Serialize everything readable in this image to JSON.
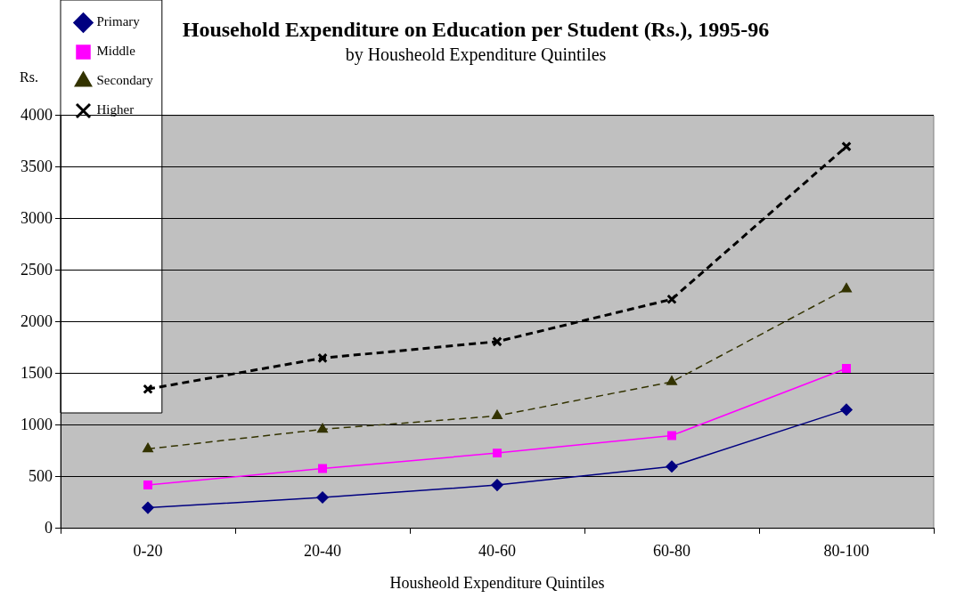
{
  "chart_data": {
    "type": "line",
    "title": "Household Expenditure on Education per Student (Rs.), 1995-96",
    "subtitle": "by Housheold Expenditure Quintiles",
    "xlabel": "Housheold Expenditure Quintiles",
    "ylabel": "Rs.",
    "categories": [
      "0-20",
      "20-40",
      "40-60",
      "60-80",
      "80-100"
    ],
    "series": [
      {
        "name": "Primary",
        "color": "#000080",
        "marker": "diamond",
        "line_style": "solid",
        "values": [
          200,
          300,
          420,
          600,
          1150
        ]
      },
      {
        "name": "Middle",
        "color": "#ff00ff",
        "marker": "square",
        "line_style": "solid",
        "values": [
          420,
          580,
          730,
          900,
          1550
        ]
      },
      {
        "name": "Secondary",
        "color": "#333300",
        "marker": "triangle",
        "line_style": "dashed",
        "values": [
          770,
          960,
          1090,
          1420,
          2320
        ]
      },
      {
        "name": "Higher",
        "color": "#000000",
        "marker": "cross",
        "line_style": "dashed",
        "values": [
          1350,
          1650,
          1810,
          2220,
          3700
        ]
      }
    ],
    "ylim": [
      0,
      4000
    ],
    "yticks": [
      0,
      500,
      1000,
      1500,
      2000,
      2500,
      3000,
      3500,
      4000
    ],
    "grid": "y",
    "legend": "top left"
  }
}
